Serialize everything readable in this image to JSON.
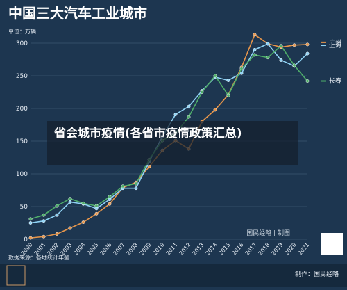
{
  "chart_data": {
    "type": "line",
    "title": "中国三大汽车工业城市",
    "unit_label": "单位：万辆",
    "categories": [
      "2000",
      "2001",
      "2002",
      "2003",
      "2004",
      "2005",
      "2006",
      "2007",
      "2008",
      "2009",
      "2010",
      "2011",
      "2012",
      "2013",
      "2014",
      "2015",
      "2016",
      "2017",
      "2018",
      "2019",
      "2020",
      "2021"
    ],
    "series": [
      {
        "name": "广州",
        "color": "#e8964a",
        "values": [
          2,
          4,
          8,
          17,
          26,
          39,
          54,
          79,
          87,
          111,
          136,
          151,
          138,
          180,
          198,
          221,
          263,
          313,
          299,
          294,
          297,
          298
        ]
      },
      {
        "name": "上海",
        "color": "#8fd3f5",
        "values": [
          25,
          28,
          37,
          57,
          54,
          47,
          61,
          78,
          78,
          119,
          157,
          191,
          203,
          227,
          248,
          243,
          254,
          290,
          299,
          274,
          265,
          284
        ]
      },
      {
        "name": "长春",
        "color": "#4fae6a",
        "values": [
          31,
          37,
          51,
          62,
          55,
          51,
          65,
          81,
          85,
          122,
          151,
          162,
          187,
          225,
          250,
          220,
          261,
          282,
          278,
          296,
          266,
          242
        ]
      }
    ],
    "ylim": [
      0,
      300
    ],
    "yticks": [
      0,
      50,
      100,
      150,
      200,
      250,
      300
    ],
    "grid": true,
    "watermark": "国民经略 | 制图",
    "source": "数据来源：各地统计年鉴",
    "credit": "制作：国民经略"
  },
  "overlay_text": "省会城市疫情(各省市疫情政策汇总)"
}
